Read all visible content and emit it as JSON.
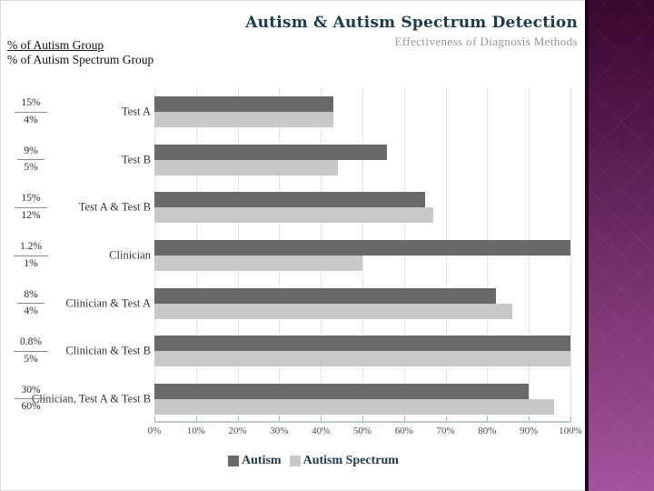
{
  "slide": {
    "header_line1": "% of Autism Group",
    "header_line2": "% of Autism Spectrum Group",
    "title": "Autism & Autism Spectrum Detection",
    "subtitle": "Effectiveness of Diagnosis Methods"
  },
  "colors": {
    "autism_bar": "#696969",
    "autism_spectrum_bar": "#c8c8c8",
    "title_text": "#1c3b49",
    "gridline": "#e4e4ec",
    "sidebar_top": "#38082e",
    "sidebar_bottom": "#a2549a"
  },
  "chart_data": {
    "type": "bar",
    "orientation": "horizontal",
    "title": "Autism & Autism Spectrum Detection",
    "subtitle": "Effectiveness of Diagnosis Methods",
    "categories": [
      "Test A",
      "Test B",
      "Test A & Test B",
      "Clinician",
      "Clinician & Test A",
      "Clinician & Test B",
      "Clinician, Test A & Test B"
    ],
    "series": [
      {
        "name": "Autism",
        "values": [
          43,
          56,
          65,
          100,
          82,
          100,
          90
        ]
      },
      {
        "name": "Autism Spectrum",
        "values": [
          43,
          44,
          67,
          50,
          86,
          100,
          96
        ]
      }
    ],
    "group_percentage_labels": [
      {
        "autism": "15%",
        "spectrum": "4%"
      },
      {
        "autism": "9%",
        "spectrum": "5%"
      },
      {
        "autism": "15%",
        "spectrum": "12%"
      },
      {
        "autism": "1.2%",
        "spectrum": "1%"
      },
      {
        "autism": "8%",
        "spectrum": "4%"
      },
      {
        "autism": "0.8%",
        "spectrum": "5%"
      },
      {
        "autism": "30%",
        "spectrum": "60%"
      }
    ],
    "x_ticks": [
      "0%",
      "10%",
      "20%",
      "30%",
      "40%",
      "50%",
      "60%",
      "70%",
      "80%",
      "90%",
      "100%"
    ],
    "xlim": [
      0,
      100
    ],
    "grid": true,
    "legend": [
      "Autism",
      "Autism Spectrum"
    ],
    "legend_position": "bottom"
  }
}
